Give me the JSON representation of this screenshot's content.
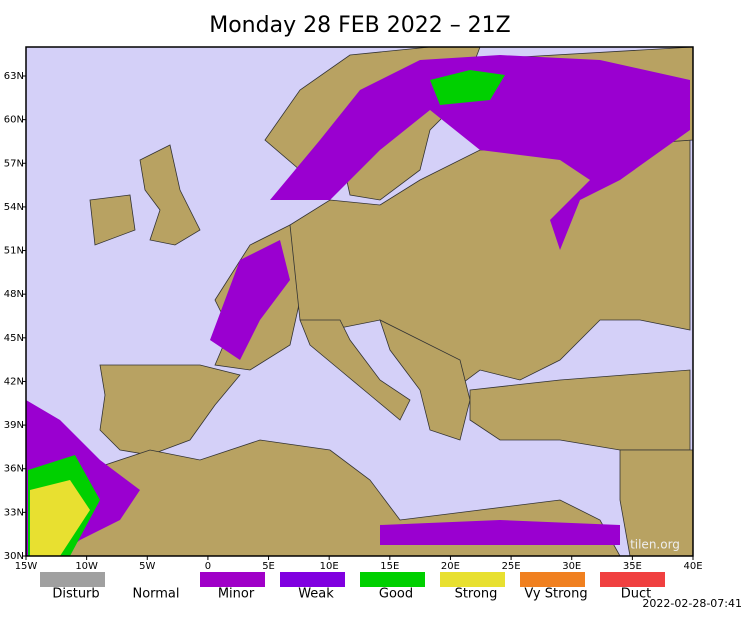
{
  "title": "Monday 28 FEB 2022 – 21Z",
  "map": {
    "lat_labels": [
      "63N",
      "60N",
      "57N",
      "54N",
      "51N",
      "48N",
      "45N",
      "42N",
      "39N",
      "36N",
      "33N",
      "30N"
    ],
    "lon_labels": [
      "15W",
      "10W",
      "5W",
      "0",
      "5E",
      "10E",
      "15E",
      "20E",
      "25E",
      "30E",
      "35E",
      "40E"
    ],
    "watermark": "tilen.org"
  },
  "legend": [
    {
      "label": "Disturb",
      "color": "#a0a0a0"
    },
    {
      "label": "Normal"
    },
    {
      "label": "Minor",
      "color": "#a000c8"
    },
    {
      "label": "Weak",
      "color": "#8000e0"
    },
    {
      "label": "Good",
      "color": "#00d000"
    },
    {
      "label": "Strong",
      "color": "#e8e030"
    },
    {
      "label": "Vy Strong",
      "color": "#f08020"
    },
    {
      "label": "Duct",
      "color": "#f04040"
    }
  ],
  "timestamp": "2022-02-28-07:41"
}
